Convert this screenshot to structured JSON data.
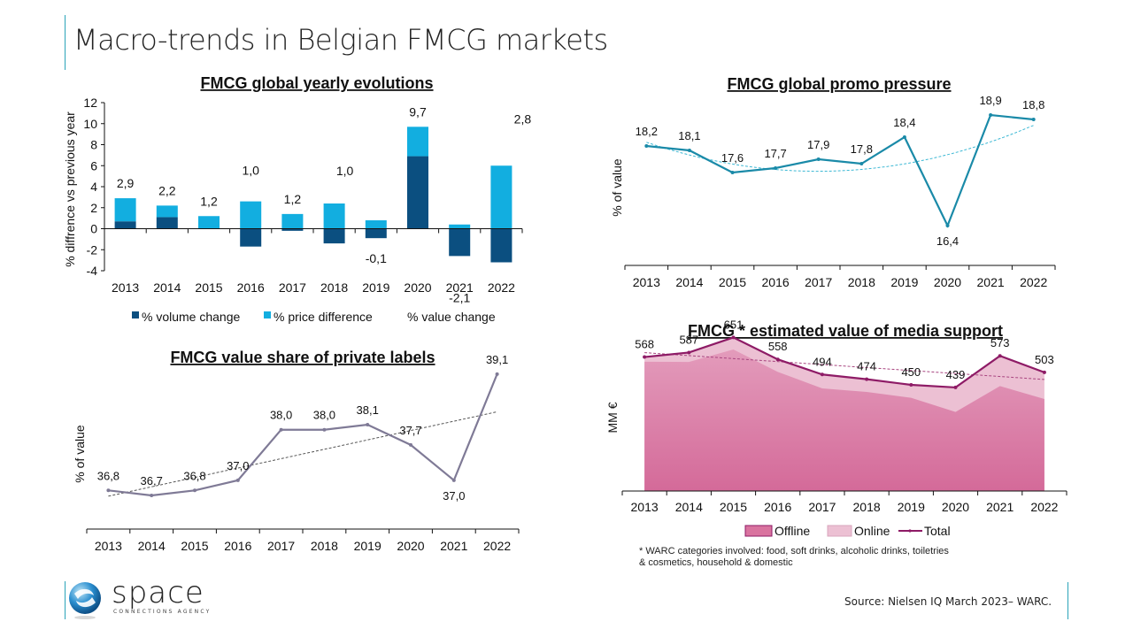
{
  "page": {
    "title": "Macro-trends in Belgian FMCG markets",
    "source": "Source: Nielsen IQ  March 2023– WARC.",
    "footnote_line1": "* WARC categories involved: food, soft drinks, alcoholic drinks, toiletries",
    "footnote_line2": "& cosmetics, household & domestic",
    "logo": {
      "name": "space",
      "tagline": "CONNECTIONS AGENCY",
      "icon": "globe-swirl-icon"
    },
    "accent_color": "#2aa3b9"
  },
  "chart_data": [
    {
      "id": "yearly",
      "type": "bar",
      "stacked": true,
      "title": "FMCG global yearly evolutions",
      "ylabel": "% diffrence vs previous year",
      "xlabel": "",
      "ylim": [
        -4,
        12
      ],
      "yticks": [
        "12",
        "10",
        "8",
        "6",
        "4",
        "2",
        "0",
        "-2",
        "-4"
      ],
      "ytick_values": [
        12,
        10,
        8,
        6,
        4,
        2,
        0,
        -2,
        -4
      ],
      "categories": [
        "2013",
        "2014",
        "2015",
        "2016",
        "2017",
        "2018",
        "2019",
        "2020",
        "2021",
        "2022"
      ],
      "series": [
        {
          "name": "% volume change",
          "color": "#0b4f80",
          "values": [
            0.7,
            1.1,
            0.0,
            -1.7,
            -0.2,
            -1.4,
            -0.9,
            6.9,
            -2.6,
            -3.2
          ]
        },
        {
          "name": "% price difference",
          "color": "#12aee0",
          "values": [
            2.2,
            1.1,
            1.2,
            2.6,
            1.4,
            2.4,
            0.8,
            2.8,
            0.4,
            6.0
          ]
        }
      ],
      "value_change": {
        "name": "% value change",
        "labels": [
          "2,9",
          "2,2",
          "1,2",
          "1,0",
          "1,2",
          "1,0",
          "-0,1",
          "9,7",
          "-2,1",
          "2,8"
        ]
      },
      "legend": [
        "% volume change",
        "% price difference",
        "% value change"
      ],
      "legend_position": "bottom",
      "grid": false
    },
    {
      "id": "promo",
      "type": "line",
      "title": "FMCG global promo pressure",
      "ylabel": "% of value",
      "categories": [
        "2013",
        "2014",
        "2015",
        "2016",
        "2017",
        "2018",
        "2019",
        "2020",
        "2021",
        "2022"
      ],
      "values": [
        18.2,
        18.1,
        17.6,
        17.7,
        17.9,
        17.8,
        18.4,
        16.4,
        18.9,
        18.8
      ],
      "labels": [
        "18,2",
        "18,1",
        "17,6",
        "17,7",
        "17,9",
        "17,8",
        "18,4",
        "16,4",
        "18,9",
        "18,8"
      ],
      "trendline": "polynomial",
      "color": "#1a8aa8",
      "ylim": [
        15.5,
        19.5
      ],
      "grid": false
    },
    {
      "id": "private",
      "type": "line",
      "title": "FMCG value share of private labels",
      "ylabel": "% of value",
      "categories": [
        "2013",
        "2014",
        "2015",
        "2016",
        "2017",
        "2018",
        "2019",
        "2020",
        "2021",
        "2022"
      ],
      "values": [
        36.8,
        36.7,
        36.8,
        37.0,
        38.0,
        38.0,
        38.1,
        37.7,
        37.0,
        39.1
      ],
      "labels": [
        "36,8",
        "36,7",
        "36,8",
        "37,0",
        "38,0",
        "38,0",
        "38,1",
        "37,7",
        "37,0",
        "39,1"
      ],
      "trendline": "linear",
      "color": "#7f7a96",
      "ylim": [
        36.0,
        39.5
      ],
      "grid": false
    },
    {
      "id": "media",
      "type": "area",
      "title": "FMCG * estimated value of media support",
      "ylabel": "MM €",
      "categories": [
        "2013",
        "2014",
        "2015",
        "2016",
        "2017",
        "2018",
        "2019",
        "2020",
        "2021",
        "2022"
      ],
      "series": [
        {
          "name": "Offline",
          "color": "#d9739f",
          "values": [
            548,
            547,
            600,
            505,
            435,
            420,
            395,
            335,
            445,
            390
          ]
        },
        {
          "name": "Online",
          "color": "#ecc0d3",
          "values": [
            20,
            40,
            51,
            53,
            59,
            54,
            55,
            104,
            128,
            113
          ]
        }
      ],
      "total": {
        "name": "Total",
        "color": "#8e1b66",
        "values": [
          568,
          587,
          651,
          558,
          494,
          474,
          450,
          439,
          573,
          503
        ],
        "labels": [
          "568",
          "587",
          "651",
          "558",
          "494",
          "474",
          "450",
          "439",
          "573",
          "503"
        ]
      },
      "trendline": "linear",
      "legend": [
        "Offline",
        "Online",
        "Total"
      ],
      "legend_position": "bottom",
      "ylim": [
        0,
        750
      ],
      "grid": false
    }
  ]
}
